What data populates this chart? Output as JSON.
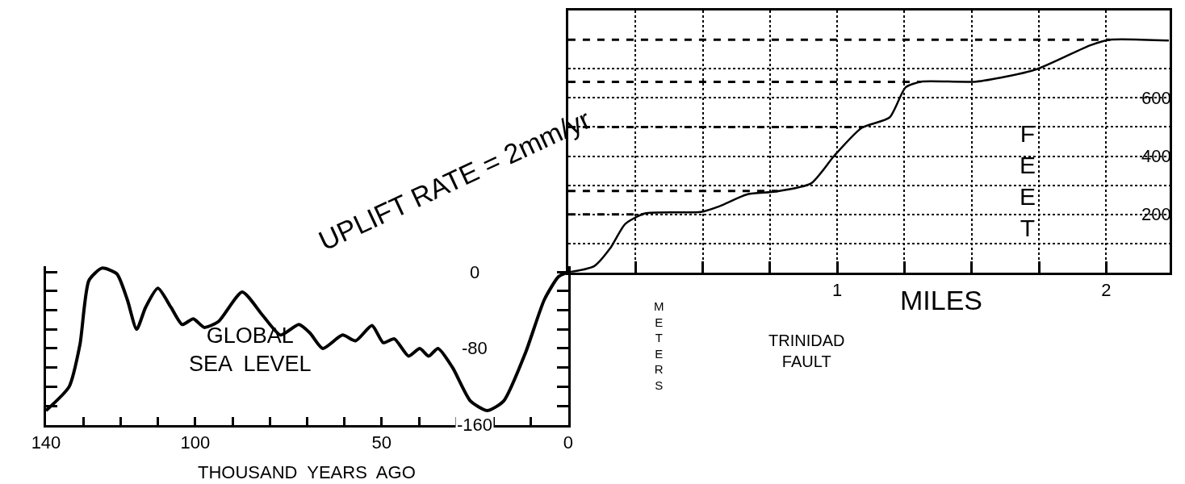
{
  "chart_data": [
    {
      "type": "line",
      "xlabel": "THOUSAND  YEARS  AGO",
      "ylabel": "METERS",
      "x": [
        140,
        133.8,
        130.9,
        128.5,
        125,
        121,
        118.2,
        115.7,
        113.3,
        110,
        106.5,
        103.5,
        100.5,
        97.6,
        93.8,
        87.4,
        82,
        77.1,
        72.2,
        69.2,
        65.8,
        60.5,
        57,
        52.6,
        49.6,
        46.6,
        42.8,
        39.8,
        37.4,
        34.9,
        31,
        26.2,
        21.7,
        17.3,
        11.4,
        6.4,
        2.6,
        0
      ],
      "series": [
        {
          "color": "#000000",
          "values": [
            -145,
            -120,
            -76,
            -9,
            4,
            -2,
            -29,
            -60,
            -37,
            -17,
            -37,
            -55,
            -49,
            -58,
            -52,
            -21,
            -45,
            -66,
            -55,
            -64,
            -80,
            -66,
            -72,
            -56,
            -74,
            -70,
            -88,
            -80,
            -88,
            -80,
            -100,
            -135,
            -145,
            -135,
            -84,
            -29,
            -5,
            0
          ]
        }
      ],
      "xlim": [
        140,
        0
      ],
      "xticks": [
        140,
        {
          "value": 130,
          "label": null
        },
        {
          "value": 120,
          "label": null
        },
        {
          "value": 110,
          "label": null
        },
        100,
        {
          "value": 90,
          "label": null
        },
        {
          "value": 80,
          "label": null
        },
        {
          "value": 70,
          "label": null
        },
        {
          "value": 60,
          "label": null
        },
        50,
        {
          "value": 40,
          "label": null
        },
        {
          "value": 30,
          "label": null
        },
        {
          "value": 20,
          "label": null
        },
        {
          "value": 10,
          "label": null
        },
        0
      ],
      "ylim": [
        -160,
        6
      ],
      "yticks": [
        -160,
        {
          "value": -140,
          "label": null
        },
        {
          "value": -120,
          "label": null
        },
        {
          "value": -100,
          "label": null
        },
        -80,
        {
          "value": -60,
          "label": null
        },
        {
          "value": -40,
          "label": null
        },
        {
          "value": -20,
          "label": null
        },
        0
      ],
      "annotations": [
        "UPLIFT RATE = 2mm/yr",
        "GLOBAL\nSEA  LEVEL"
      ],
      "grid": false
    },
    {
      "type": "line",
      "xlabel": "MILES",
      "ylabel": "FEET",
      "x": [
        0,
        0.097,
        0.156,
        0.212,
        0.286,
        0.493,
        0.563,
        0.667,
        0.77,
        0.903,
        0.988,
        1.091,
        1.195,
        1.254,
        1.313,
        1.516,
        1.737,
        1.941,
        2.015,
        2.233
      ],
      "series": [
        {
          "color": "#000000",
          "values": [
            0,
            22,
            83,
            167,
            203,
            208,
            228,
            269,
            278,
            306,
            400,
            497,
            533,
            636,
            656,
            656,
            697,
            781,
            800,
            797
          ]
        }
      ],
      "xlim": [
        0,
        2.236
      ],
      "xticks": [
        {
          "value": 0.25,
          "label": null
        },
        {
          "value": 0.5,
          "label": null
        },
        {
          "value": 0.75,
          "label": null
        },
        1,
        {
          "value": 1.25,
          "label": null
        },
        {
          "value": 1.5,
          "label": null
        },
        {
          "value": 1.75,
          "label": null
        },
        2
      ],
      "ylim": [
        0,
        900
      ],
      "yticks": [
        {
          "value": 100,
          "label": null
        },
        200,
        {
          "value": 300,
          "label": null
        },
        400,
        {
          "value": 500,
          "label": null
        },
        600,
        {
          "value": 700,
          "label": null
        }
      ],
      "ref_lines": [
        {
          "axis": "y",
          "value": 800,
          "line_style": "dashed"
        },
        {
          "axis": "y",
          "value": 655,
          "line_style": "dashed"
        },
        {
          "axis": "y",
          "value": 500,
          "line_style": "dashed"
        },
        {
          "axis": "y",
          "value": 280,
          "line_style": "dashed"
        },
        {
          "axis": "y",
          "value": 200,
          "line_style": "dashed"
        }
      ],
      "annotations": [
        "TRINIDAD\nFAULT"
      ],
      "grid": true,
      "line_style": "solid"
    }
  ]
}
